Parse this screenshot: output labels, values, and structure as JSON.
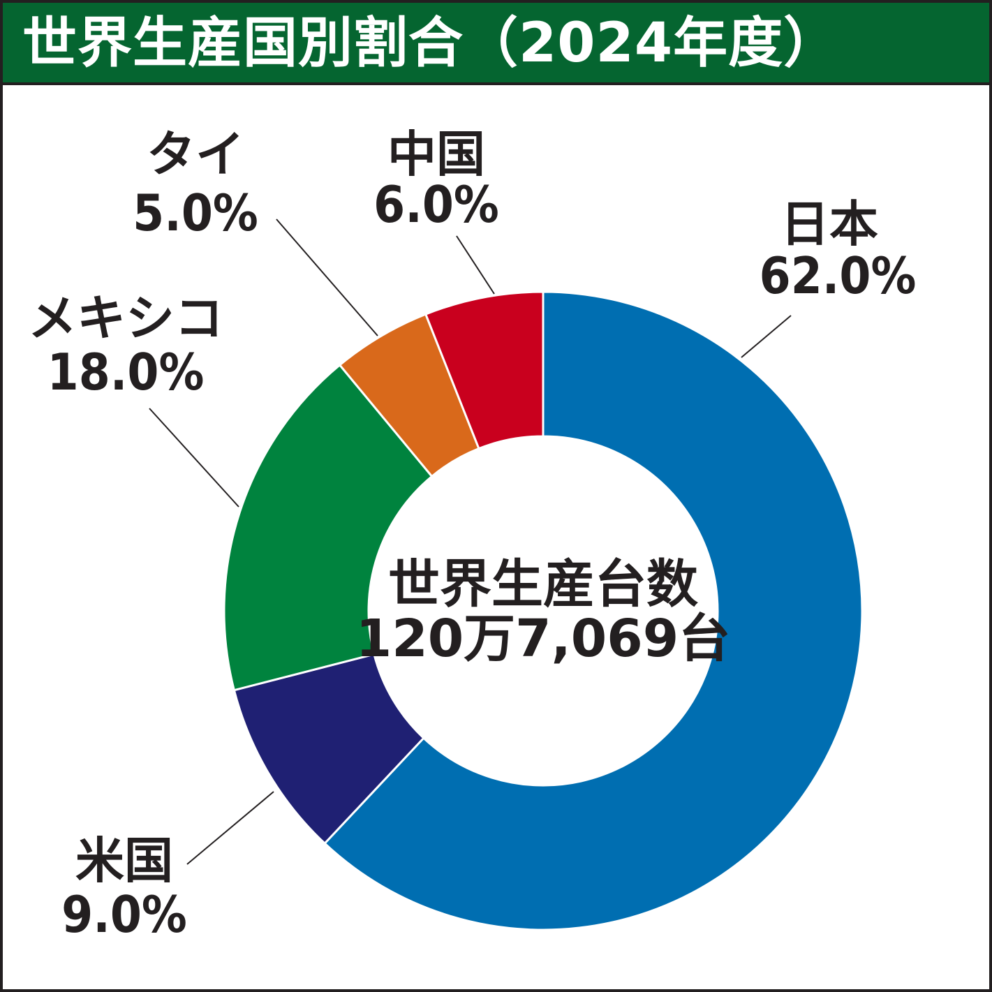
{
  "title": "世界生産国別割合（2024年度）",
  "chart_data": {
    "type": "pie",
    "subtype": "donut",
    "title": "世界生産国別割合（2024年度）",
    "center_label": "世界生産台数",
    "center_value": "120万7,069台",
    "slices": [
      {
        "label": "日本",
        "value": 62.0,
        "display": "62.0%",
        "color": "#006eb1"
      },
      {
        "label": "米国",
        "value": 9.0,
        "display": "9.0%",
        "color": "#1f2073"
      },
      {
        "label": "メキシコ",
        "value": 18.0,
        "display": "18.0%",
        "color": "#00833e"
      },
      {
        "label": "タイ",
        "value": 5.0,
        "display": "5.0%",
        "color": "#d9691b"
      },
      {
        "label": "中国",
        "value": 6.0,
        "display": "6.0%",
        "color": "#c9001e"
      }
    ],
    "legend": "none"
  }
}
